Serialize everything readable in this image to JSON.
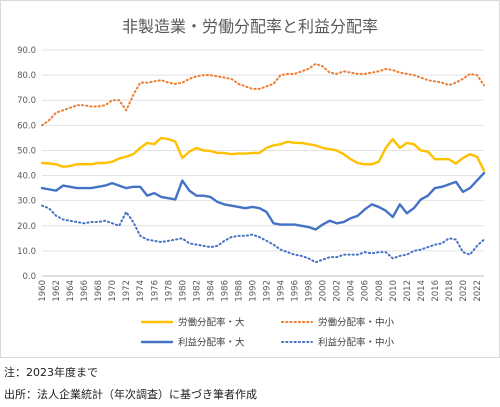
{
  "chart_data": {
    "type": "line",
    "title": "非製造業・労働分配率と利益分配率",
    "xlabel": "",
    "ylabel": "",
    "ylim": [
      0,
      90
    ],
    "y_ticks": [
      "0.0",
      "10.0",
      "20.0",
      "30.0",
      "40.0",
      "50.0",
      "60.0",
      "70.0",
      "80.0",
      "90.0"
    ],
    "x": [
      1960,
      1961,
      1962,
      1963,
      1964,
      1965,
      1966,
      1967,
      1968,
      1969,
      1970,
      1971,
      1972,
      1973,
      1974,
      1975,
      1976,
      1977,
      1978,
      1979,
      1980,
      1981,
      1982,
      1983,
      1984,
      1985,
      1986,
      1987,
      1988,
      1989,
      1990,
      1991,
      1992,
      1993,
      1994,
      1995,
      1996,
      1997,
      1998,
      1999,
      2000,
      2001,
      2002,
      2003,
      2004,
      2005,
      2006,
      2007,
      2008,
      2009,
      2010,
      2011,
      2012,
      2013,
      2014,
      2015,
      2016,
      2017,
      2018,
      2019,
      2020,
      2021,
      2022,
      2023
    ],
    "x_tick_labels": [
      "1960",
      "1962",
      "1964",
      "1966",
      "1968",
      "1970",
      "1972",
      "1974",
      "1976",
      "1978",
      "1980",
      "1982",
      "1984",
      "1986",
      "1988",
      "1990",
      "1992",
      "1994",
      "1996",
      "1998",
      "2000",
      "2002",
      "2004",
      "2006",
      "2008",
      "2010",
      "2012",
      "2014",
      "2016",
      "2018",
      "2020",
      "2022"
    ],
    "grid": true,
    "legend_position": "bottom",
    "series": [
      {
        "name": "労働分配率・大",
        "color": "#FFC000",
        "style": "solid",
        "values": [
          45.0,
          44.8,
          44.5,
          43.5,
          43.8,
          44.5,
          44.5,
          44.5,
          45.0,
          45.0,
          45.5,
          46.8,
          47.5,
          48.5,
          51.0,
          53.0,
          52.5,
          55.0,
          54.5,
          53.5,
          47.0,
          49.5,
          51.0,
          50.0,
          49.8,
          49.0,
          49.0,
          48.5,
          48.8,
          48.7,
          49.0,
          49.0,
          51.0,
          52.0,
          52.5,
          53.5,
          53.0,
          53.0,
          52.5,
          52.0,
          51.0,
          50.5,
          50.0,
          48.5,
          46.5,
          45.0,
          44.5,
          44.5,
          45.5,
          51.0,
          54.5,
          51.0,
          53.0,
          52.5,
          50.0,
          49.5,
          46.5,
          46.5,
          46.5,
          44.8,
          47.0,
          48.5,
          47.5,
          42.0
        ]
      },
      {
        "name": "労働分配率・中小",
        "color": "#ED7D31",
        "style": "dotted",
        "values": [
          60.0,
          62.0,
          65.0,
          66.0,
          67.0,
          68.0,
          68.0,
          67.5,
          67.5,
          68.0,
          70.0,
          70.0,
          66.0,
          72.0,
          77.0,
          77.0,
          77.5,
          78.0,
          77.0,
          76.5,
          77.0,
          78.5,
          79.5,
          80.0,
          80.0,
          79.5,
          79.0,
          78.5,
          76.5,
          75.5,
          74.5,
          74.5,
          75.5,
          76.5,
          80.0,
          80.5,
          80.5,
          81.5,
          82.5,
          84.5,
          83.5,
          81.0,
          80.5,
          81.5,
          81.0,
          80.5,
          80.5,
          81.0,
          81.5,
          82.5,
          82.0,
          81.0,
          80.5,
          80.0,
          79.0,
          78.0,
          77.5,
          77.0,
          76.0,
          77.0,
          78.5,
          80.5,
          80.0,
          76.0
        ]
      },
      {
        "name": "利益分配率・大",
        "color": "#4472C4",
        "style": "solid",
        "values": [
          35.0,
          34.5,
          34.0,
          36.0,
          35.5,
          35.0,
          35.0,
          35.0,
          35.5,
          36.0,
          37.0,
          36.0,
          35.0,
          35.5,
          35.5,
          32.0,
          33.0,
          31.5,
          31.0,
          30.5,
          38.0,
          34.0,
          32.0,
          32.0,
          31.5,
          29.5,
          28.5,
          28.0,
          27.5,
          27.0,
          27.5,
          27.0,
          25.5,
          21.0,
          20.5,
          20.5,
          20.5,
          20.0,
          19.5,
          18.5,
          20.5,
          22.0,
          21.0,
          21.5,
          23.0,
          24.0,
          26.5,
          28.5,
          27.5,
          26.0,
          23.5,
          28.5,
          25.0,
          27.0,
          30.5,
          32.0,
          35.0,
          35.5,
          36.5,
          37.5,
          33.5,
          35.0,
          38.0,
          41.0
        ]
      },
      {
        "name": "利益分配率・中小",
        "color": "#4472C4",
        "style": "dotted",
        "values": [
          28.0,
          27.0,
          24.0,
          22.5,
          22.0,
          21.5,
          21.0,
          21.5,
          21.5,
          22.0,
          21.0,
          20.0,
          25.5,
          21.5,
          16.0,
          14.5,
          14.0,
          13.5,
          14.0,
          14.5,
          15.0,
          13.0,
          12.5,
          12.0,
          11.5,
          12.0,
          14.0,
          15.5,
          16.0,
          16.0,
          16.5,
          15.5,
          14.0,
          12.5,
          10.5,
          9.5,
          8.5,
          8.0,
          7.0,
          5.5,
          6.5,
          7.5,
          7.5,
          8.5,
          8.5,
          8.5,
          9.5,
          9.0,
          9.5,
          9.5,
          7.0,
          8.0,
          8.5,
          10.0,
          10.5,
          11.5,
          12.5,
          13.0,
          15.0,
          14.5,
          9.5,
          8.5,
          12.0,
          14.5
        ]
      }
    ]
  },
  "notes": {
    "note1": "注：2023年度まで",
    "note2": "出所：法人企業統計（年次調査）に基づき筆者作成"
  }
}
